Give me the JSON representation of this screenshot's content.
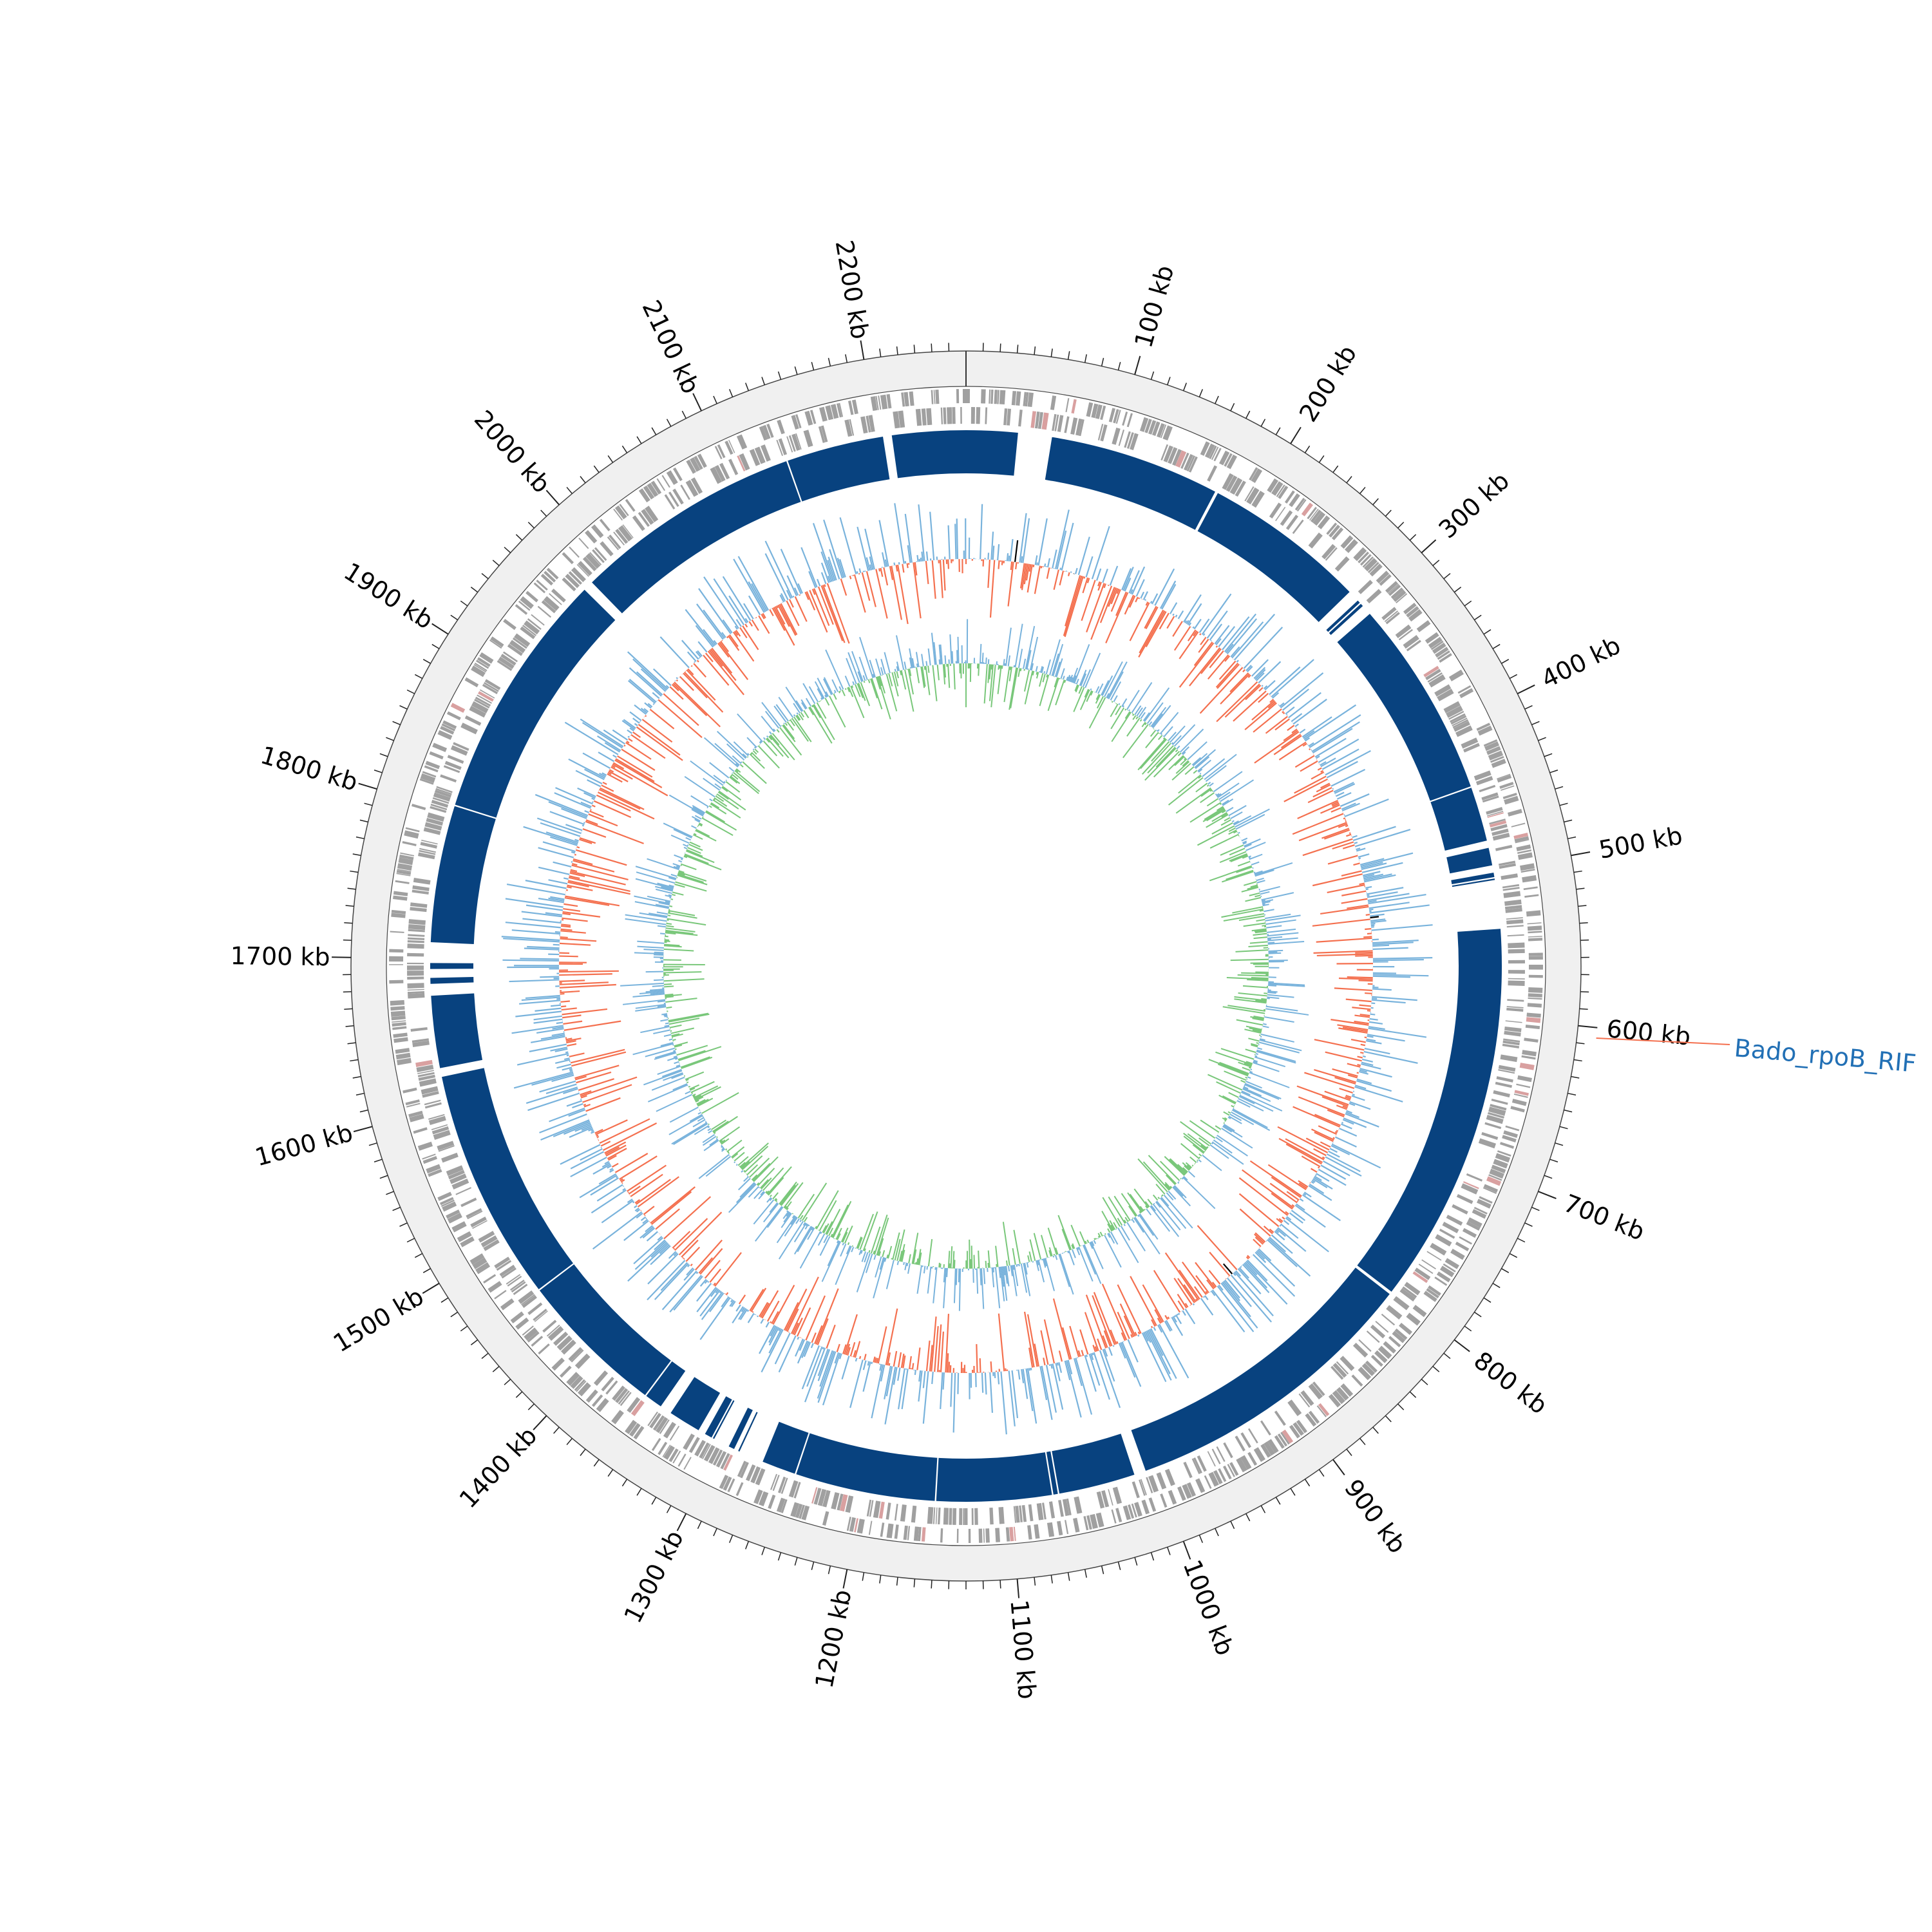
{
  "genome": {
    "length_kb": 2260,
    "position_unit": "kb"
  },
  "ticks": {
    "labeled_kb": [
      100,
      200,
      300,
      400,
      500,
      600,
      700,
      800,
      900,
      1000,
      1100,
      1200,
      1300,
      1400,
      1500,
      1600,
      1700,
      1800,
      1900,
      2000,
      2100,
      2200
    ],
    "labels": [
      "100 kb",
      "200 kb",
      "300 kb",
      "400 kb",
      "500 kb",
      "600 kb",
      "700 kb",
      "800 kb",
      "900 kb",
      "1000 kb",
      "1100 kb",
      "1200 kb",
      "1300 kb",
      "1400 kb",
      "1500 kb",
      "1600 kb",
      "1700 kb",
      "1800 kb",
      "1900 kb",
      "2000 kb",
      "2100 kb",
      "2200 kb"
    ],
    "minor_step_kb": 10
  },
  "tracks": {
    "contigs": {
      "color": "#08427f",
      "segments_kb": [
        [
          0,
          35
        ],
        [
          59,
          63
        ],
        [
          58,
          174
        ],
        [
          176,
          287
        ],
        [
          295,
          297
        ],
        [
          298,
          300
        ],
        [
          307,
          442
        ],
        [
          443,
          480
        ],
        [
          485,
          497
        ],
        [
          502,
          505
        ],
        [
          506,
          507
        ],
        [
          540,
          800
        ],
        [
          802,
          1007
        ],
        [
          1015,
          1067
        ],
        [
          1068,
          1071
        ],
        [
          1072,
          1150
        ],
        [
          1151,
          1246
        ],
        [
          1247,
          1270
        ],
        [
          1287,
          1288
        ],
        [
          1291,
          1295
        ],
        [
          1306,
          1307
        ],
        [
          1308,
          1313
        ],
        [
          1318,
          1340
        ],
        [
          1348,
          1360
        ],
        [
          1361,
          1461
        ],
        [
          1462,
          1620
        ],
        [
          1626,
          1675
        ],
        [
          1683,
          1687
        ],
        [
          1693,
          1697
        ],
        [
          1711,
          1804
        ],
        [
          1805,
          1975
        ],
        [
          1982,
          2137
        ],
        [
          2138,
          2204
        ],
        [
          2210,
          2260
        ]
      ]
    },
    "genes": {
      "color": "#a0a0a0",
      "highlight_color": "#d9a0a0"
    },
    "gc_content": {
      "above_color": "#79b3dc",
      "below_color": "#f4704f",
      "extreme_color": "#000000"
    },
    "gc_skew": {
      "positive_color": "#79b3dc",
      "negative_color": "#79c77a"
    }
  },
  "annotations": [
    {
      "label": "Bado_rpoB_RIF",
      "position_kb": 606,
      "color": "#2270b5",
      "line_color": "#f4704f"
    }
  ]
}
